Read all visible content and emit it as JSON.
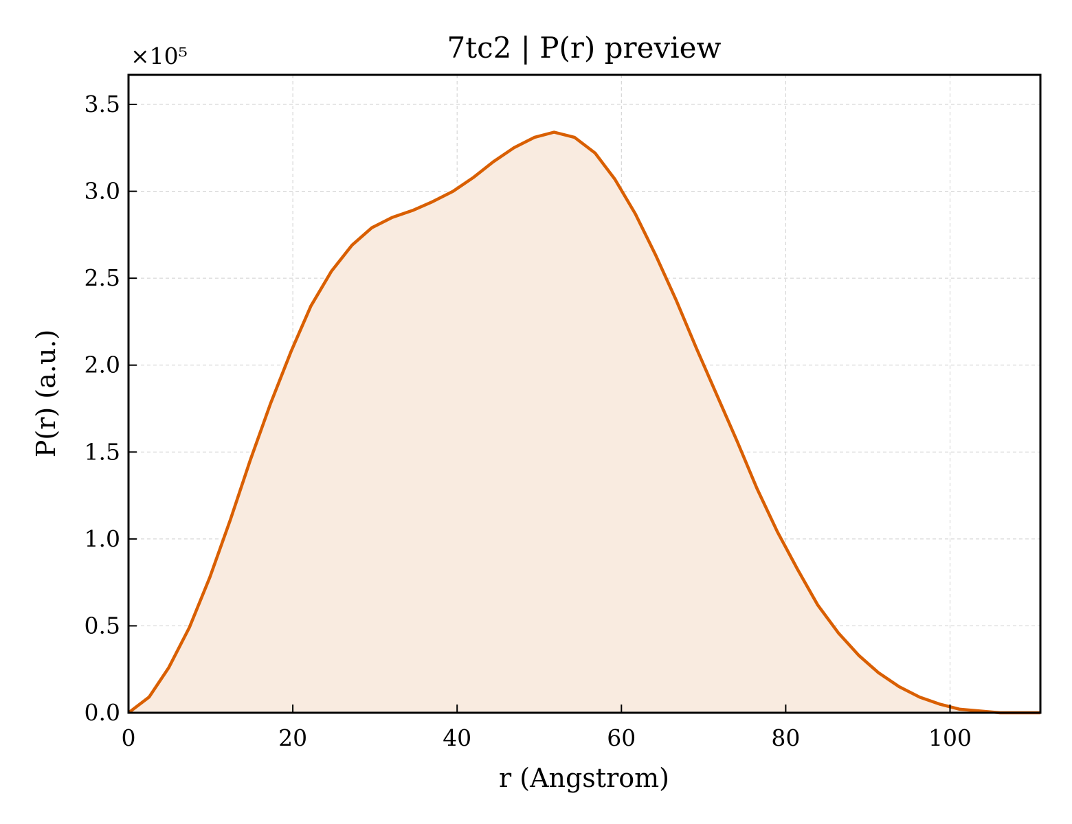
{
  "chart_data": {
    "type": "area",
    "title": "7tc2 | P(r) preview",
    "xlabel": "r (Angstrom)",
    "ylabel": "P(r) (a.u.)",
    "y_offset_label": "×10⁵",
    "y_scale_factor": 100000,
    "xlim": [
      0,
      111
    ],
    "ylim": [
      0,
      3.67
    ],
    "xticks": [
      0,
      20,
      40,
      60,
      80,
      100
    ],
    "yticks": [
      0.0,
      0.5,
      1.0,
      1.5,
      2.0,
      2.5,
      3.0,
      3.5
    ],
    "xtick_labels": [
      "0",
      "20",
      "40",
      "60",
      "80",
      "100"
    ],
    "ytick_labels": [
      "0.0",
      "0.5",
      "1.0",
      "1.5",
      "2.0",
      "2.5",
      "3.0",
      "3.5"
    ],
    "grid": true,
    "colors": {
      "line": "#d95f02",
      "fill": "#f9ebe0"
    },
    "series": [
      {
        "x": [
          0,
          2.5,
          4.9,
          7.4,
          9.9,
          12.4,
          14.8,
          17.3,
          19.8,
          22.2,
          24.7,
          27.2,
          29.6,
          32.1,
          34.6,
          37.0,
          39.5,
          42.0,
          44.4,
          46.9,
          49.4,
          51.8,
          54.3,
          56.8,
          59.2,
          61.7,
          64.2,
          66.7,
          69.1,
          71.6,
          74.1,
          76.5,
          79.0,
          81.5,
          83.9,
          86.4,
          88.9,
          91.3,
          93.8,
          96.3,
          98.7,
          101.2,
          103.7,
          106.1,
          108.6,
          111.0
        ],
        "y": [
          0.0,
          0.09,
          0.26,
          0.49,
          0.78,
          1.11,
          1.45,
          1.78,
          2.08,
          2.34,
          2.54,
          2.69,
          2.79,
          2.85,
          2.89,
          2.94,
          3.0,
          3.08,
          3.17,
          3.25,
          3.31,
          3.34,
          3.31,
          3.22,
          3.07,
          2.87,
          2.63,
          2.37,
          2.1,
          1.83,
          1.56,
          1.29,
          1.04,
          0.82,
          0.62,
          0.46,
          0.33,
          0.23,
          0.15,
          0.09,
          0.05,
          0.02,
          0.01,
          0.0,
          0.0,
          0.0
        ]
      }
    ]
  }
}
